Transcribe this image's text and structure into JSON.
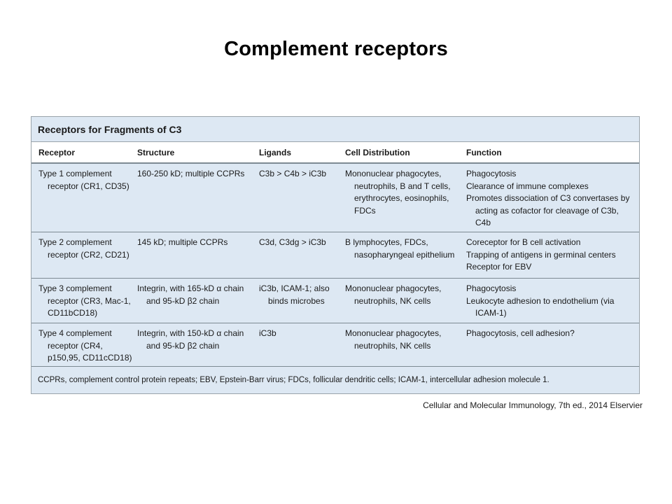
{
  "slide": {
    "title": "Complement receptors",
    "caption": "Cellular and Molecular Immunology, 7th ed., 2014 Elservier"
  },
  "table": {
    "heading": "Receptors for Fragments of C3",
    "columns": [
      "Receptor",
      "Structure",
      "Ligands",
      "Cell Distribution",
      "Function"
    ],
    "rows": [
      {
        "receptor": "Type 1 complement receptor (CR1, CD35)",
        "structure": "160-250 kD; multiple CCPRs",
        "ligands": "C3b > C4b > iC3b",
        "distribution": "Mononuclear phagocytes, neutrophils, B and T cells, erythrocytes, eosinophils, FDCs",
        "functions": [
          "Phagocytosis",
          "Clearance of immune complexes",
          "Promotes dissociation of C3 convertases by acting as cofactor for cleavage of C3b, C4b"
        ]
      },
      {
        "receptor": "Type 2 complement receptor (CR2, CD21)",
        "structure": "145 kD; multiple CCPRs",
        "ligands": "C3d, C3dg > iC3b",
        "distribution": "B lymphocytes, FDCs, nasopharyngeal epithelium",
        "functions": [
          "Coreceptor for B cell activation",
          "Trapping of antigens in germinal centers",
          "Receptor for EBV"
        ]
      },
      {
        "receptor": "Type 3 complement receptor (CR3, Mac-1, CD11bCD18)",
        "structure": "Integrin, with 165-kD α chain and 95-kD β2 chain",
        "ligands": "iC3b, ICAM-1; also binds microbes",
        "distribution": "Mononuclear phagocytes, neutrophils, NK cells",
        "functions": [
          "Phagocytosis",
          "Leukocyte adhesion to endothelium (via ICAM-1)"
        ]
      },
      {
        "receptor": "Type 4 complement receptor (CR4, p150,95, CD11cCD18)",
        "structure": "Integrin, with 150-kD α chain and 95-kD β2 chain",
        "ligands": "iC3b",
        "distribution": "Mononuclear phagocytes, neutrophils, NK cells",
        "functions": [
          "Phagocytosis, cell adhesion?"
        ]
      }
    ],
    "footnote": "CCPRs, complement control protein repeats; EBV, Epstein-Barr virus; FDCs, follicular dendritic cells; ICAM-1, intercellular adhesion molecule 1."
  }
}
